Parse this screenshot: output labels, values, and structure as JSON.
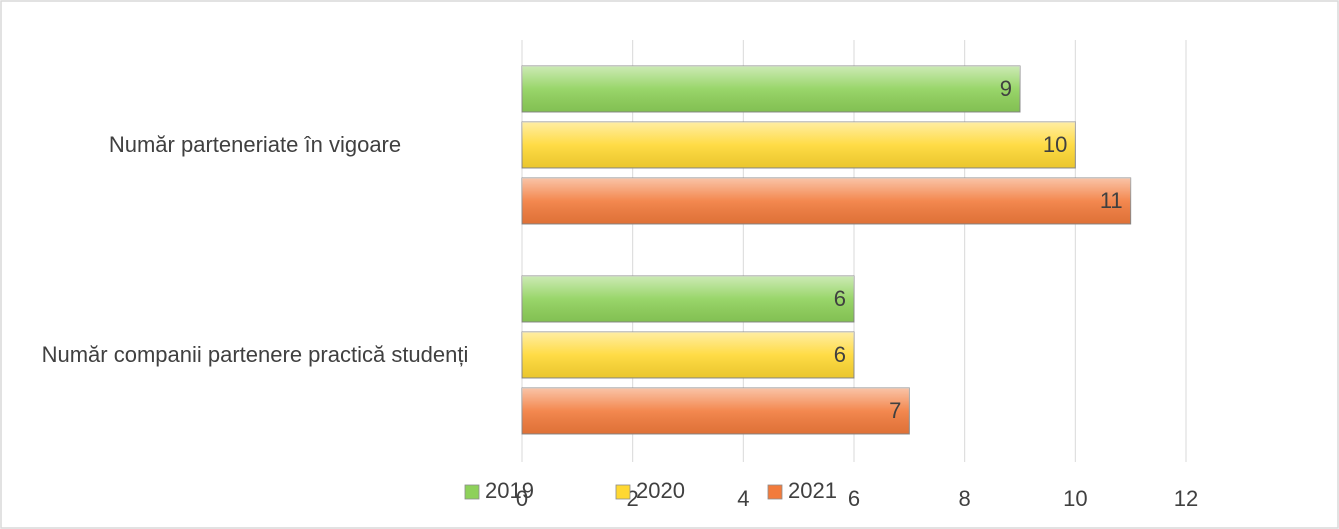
{
  "chart_data": {
    "type": "bar",
    "orientation": "horizontal",
    "categories": [
      "Număr parteneriate în vigoare",
      "Număr companii partenere practică studenți"
    ],
    "series": [
      {
        "name": "2019",
        "color": "#8ed15a",
        "values": [
          9,
          6
        ]
      },
      {
        "name": "2020",
        "color": "#ffd832",
        "values": [
          10,
          6
        ]
      },
      {
        "name": "2021",
        "color": "#f27b3c",
        "values": [
          11,
          7
        ]
      }
    ],
    "xlim": [
      0,
      12
    ],
    "xticks": [
      0,
      2,
      4,
      6,
      8,
      10,
      12
    ],
    "grid": true,
    "legend": "bottom"
  }
}
